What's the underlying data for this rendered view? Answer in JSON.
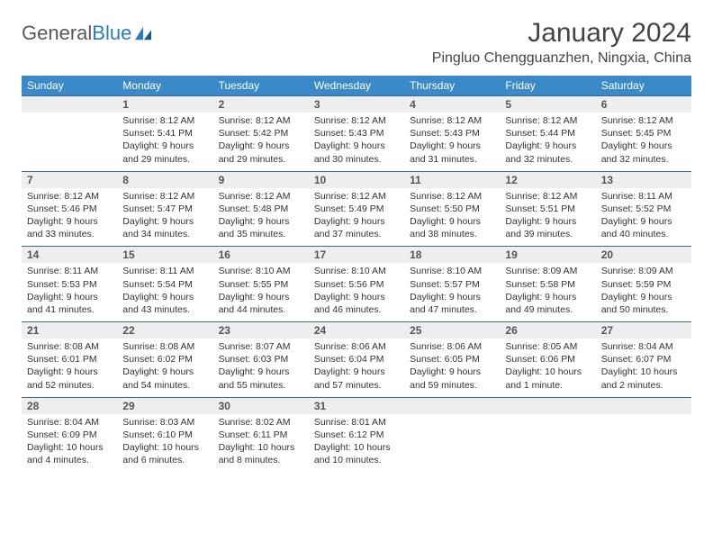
{
  "logo": {
    "part1": "General",
    "part2": "Blue"
  },
  "title": "January 2024",
  "location": "Pingluo Chengguanzhen, Ningxia, China",
  "weekdays": [
    "Sunday",
    "Monday",
    "Tuesday",
    "Wednesday",
    "Thursday",
    "Friday",
    "Saturday"
  ],
  "colors": {
    "header_bg": "#3a89c9",
    "header_text": "#ffffff",
    "daynum_bg": "#eeeeee",
    "border": "#3a6a9a",
    "text": "#333333"
  },
  "fonts": {
    "title_size": 30,
    "location_size": 16,
    "weekday_size": 12,
    "daynum_size": 12,
    "detail_size": 10.5
  },
  "weeks": [
    {
      "nums": [
        "",
        "1",
        "2",
        "3",
        "4",
        "5",
        "6"
      ],
      "details": [
        {
          "sr": "",
          "ss": "",
          "dl": ""
        },
        {
          "sr": "Sunrise: 8:12 AM",
          "ss": "Sunset: 5:41 PM",
          "dl": "Daylight: 9 hours and 29 minutes."
        },
        {
          "sr": "Sunrise: 8:12 AM",
          "ss": "Sunset: 5:42 PM",
          "dl": "Daylight: 9 hours and 29 minutes."
        },
        {
          "sr": "Sunrise: 8:12 AM",
          "ss": "Sunset: 5:43 PM",
          "dl": "Daylight: 9 hours and 30 minutes."
        },
        {
          "sr": "Sunrise: 8:12 AM",
          "ss": "Sunset: 5:43 PM",
          "dl": "Daylight: 9 hours and 31 minutes."
        },
        {
          "sr": "Sunrise: 8:12 AM",
          "ss": "Sunset: 5:44 PM",
          "dl": "Daylight: 9 hours and 32 minutes."
        },
        {
          "sr": "Sunrise: 8:12 AM",
          "ss": "Sunset: 5:45 PM",
          "dl": "Daylight: 9 hours and 32 minutes."
        }
      ]
    },
    {
      "nums": [
        "7",
        "8",
        "9",
        "10",
        "11",
        "12",
        "13"
      ],
      "details": [
        {
          "sr": "Sunrise: 8:12 AM",
          "ss": "Sunset: 5:46 PM",
          "dl": "Daylight: 9 hours and 33 minutes."
        },
        {
          "sr": "Sunrise: 8:12 AM",
          "ss": "Sunset: 5:47 PM",
          "dl": "Daylight: 9 hours and 34 minutes."
        },
        {
          "sr": "Sunrise: 8:12 AM",
          "ss": "Sunset: 5:48 PM",
          "dl": "Daylight: 9 hours and 35 minutes."
        },
        {
          "sr": "Sunrise: 8:12 AM",
          "ss": "Sunset: 5:49 PM",
          "dl": "Daylight: 9 hours and 37 minutes."
        },
        {
          "sr": "Sunrise: 8:12 AM",
          "ss": "Sunset: 5:50 PM",
          "dl": "Daylight: 9 hours and 38 minutes."
        },
        {
          "sr": "Sunrise: 8:12 AM",
          "ss": "Sunset: 5:51 PM",
          "dl": "Daylight: 9 hours and 39 minutes."
        },
        {
          "sr": "Sunrise: 8:11 AM",
          "ss": "Sunset: 5:52 PM",
          "dl": "Daylight: 9 hours and 40 minutes."
        }
      ]
    },
    {
      "nums": [
        "14",
        "15",
        "16",
        "17",
        "18",
        "19",
        "20"
      ],
      "details": [
        {
          "sr": "Sunrise: 8:11 AM",
          "ss": "Sunset: 5:53 PM",
          "dl": "Daylight: 9 hours and 41 minutes."
        },
        {
          "sr": "Sunrise: 8:11 AM",
          "ss": "Sunset: 5:54 PM",
          "dl": "Daylight: 9 hours and 43 minutes."
        },
        {
          "sr": "Sunrise: 8:10 AM",
          "ss": "Sunset: 5:55 PM",
          "dl": "Daylight: 9 hours and 44 minutes."
        },
        {
          "sr": "Sunrise: 8:10 AM",
          "ss": "Sunset: 5:56 PM",
          "dl": "Daylight: 9 hours and 46 minutes."
        },
        {
          "sr": "Sunrise: 8:10 AM",
          "ss": "Sunset: 5:57 PM",
          "dl": "Daylight: 9 hours and 47 minutes."
        },
        {
          "sr": "Sunrise: 8:09 AM",
          "ss": "Sunset: 5:58 PM",
          "dl": "Daylight: 9 hours and 49 minutes."
        },
        {
          "sr": "Sunrise: 8:09 AM",
          "ss": "Sunset: 5:59 PM",
          "dl": "Daylight: 9 hours and 50 minutes."
        }
      ]
    },
    {
      "nums": [
        "21",
        "22",
        "23",
        "24",
        "25",
        "26",
        "27"
      ],
      "details": [
        {
          "sr": "Sunrise: 8:08 AM",
          "ss": "Sunset: 6:01 PM",
          "dl": "Daylight: 9 hours and 52 minutes."
        },
        {
          "sr": "Sunrise: 8:08 AM",
          "ss": "Sunset: 6:02 PM",
          "dl": "Daylight: 9 hours and 54 minutes."
        },
        {
          "sr": "Sunrise: 8:07 AM",
          "ss": "Sunset: 6:03 PM",
          "dl": "Daylight: 9 hours and 55 minutes."
        },
        {
          "sr": "Sunrise: 8:06 AM",
          "ss": "Sunset: 6:04 PM",
          "dl": "Daylight: 9 hours and 57 minutes."
        },
        {
          "sr": "Sunrise: 8:06 AM",
          "ss": "Sunset: 6:05 PM",
          "dl": "Daylight: 9 hours and 59 minutes."
        },
        {
          "sr": "Sunrise: 8:05 AM",
          "ss": "Sunset: 6:06 PM",
          "dl": "Daylight: 10 hours and 1 minute."
        },
        {
          "sr": "Sunrise: 8:04 AM",
          "ss": "Sunset: 6:07 PM",
          "dl": "Daylight: 10 hours and 2 minutes."
        }
      ]
    },
    {
      "nums": [
        "28",
        "29",
        "30",
        "31",
        "",
        "",
        ""
      ],
      "details": [
        {
          "sr": "Sunrise: 8:04 AM",
          "ss": "Sunset: 6:09 PM",
          "dl": "Daylight: 10 hours and 4 minutes."
        },
        {
          "sr": "Sunrise: 8:03 AM",
          "ss": "Sunset: 6:10 PM",
          "dl": "Daylight: 10 hours and 6 minutes."
        },
        {
          "sr": "Sunrise: 8:02 AM",
          "ss": "Sunset: 6:11 PM",
          "dl": "Daylight: 10 hours and 8 minutes."
        },
        {
          "sr": "Sunrise: 8:01 AM",
          "ss": "Sunset: 6:12 PM",
          "dl": "Daylight: 10 hours and 10 minutes."
        },
        {
          "sr": "",
          "ss": "",
          "dl": ""
        },
        {
          "sr": "",
          "ss": "",
          "dl": ""
        },
        {
          "sr": "",
          "ss": "",
          "dl": ""
        }
      ]
    }
  ]
}
